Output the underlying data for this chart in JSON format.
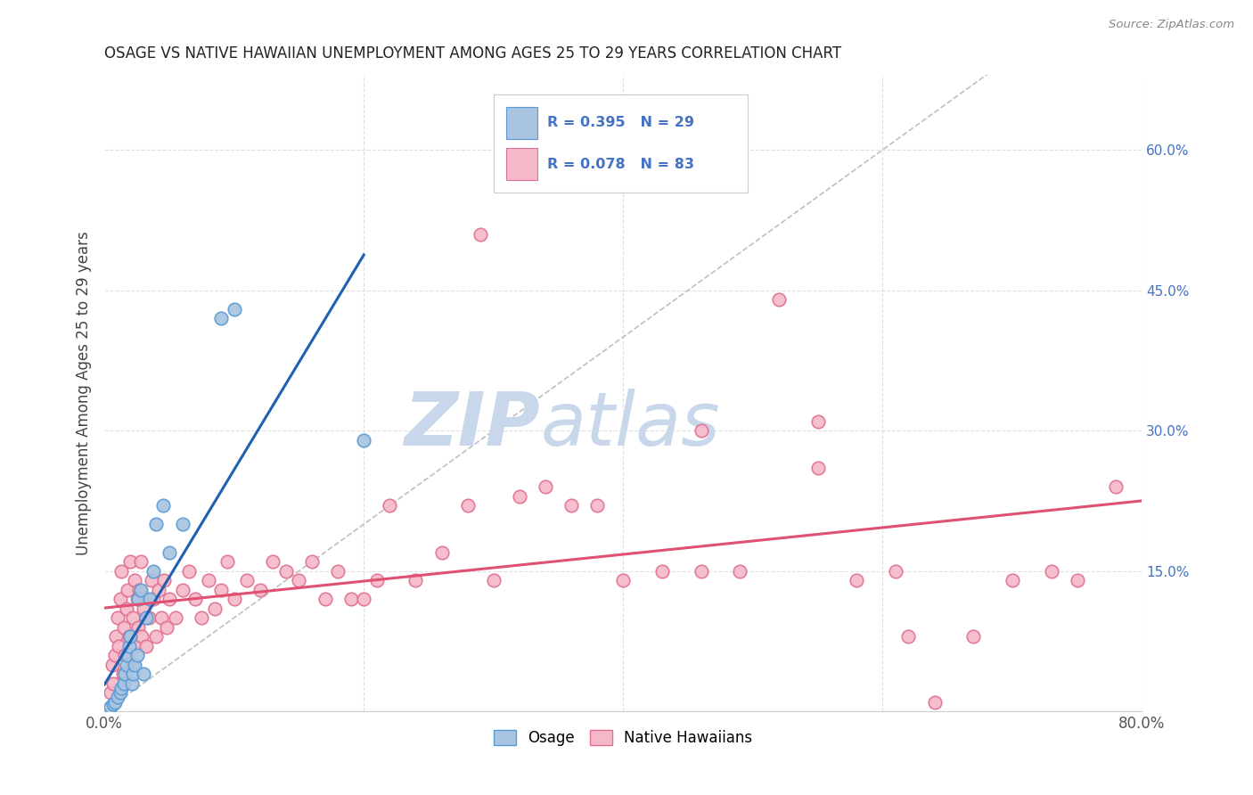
{
  "title": "OSAGE VS NATIVE HAWAIIAN UNEMPLOYMENT AMONG AGES 25 TO 29 YEARS CORRELATION CHART",
  "source": "Source: ZipAtlas.com",
  "ylabel": "Unemployment Among Ages 25 to 29 years",
  "xlim": [
    0.0,
    0.8
  ],
  "ylim": [
    0.0,
    0.68
  ],
  "yticks_right": [
    0.15,
    0.3,
    0.45,
    0.6
  ],
  "ytick_right_labels": [
    "15.0%",
    "30.0%",
    "45.0%",
    "60.0%"
  ],
  "osage_color": "#a8c4e0",
  "osage_edge_color": "#5b9bd5",
  "nh_color": "#f4b8c8",
  "nh_edge_color": "#e07090",
  "regression_osage_color": "#2060b0",
  "regression_nh_color": "#e05070",
  "diagonal_color": "#b8b8b8",
  "watermark_color": "#c8d8ea",
  "background_color": "#ffffff",
  "grid_color": "#e0e0e0",
  "legend_text_blue": "#4472c4",
  "legend_text_dark": "#333333",
  "osage_x": [
    0.005,
    0.007,
    0.008,
    0.01,
    0.012,
    0.013,
    0.015,
    0.016,
    0.017,
    0.018,
    0.019,
    0.02,
    0.021,
    0.022,
    0.023,
    0.025,
    0.026,
    0.028,
    0.03,
    0.032,
    0.035,
    0.038,
    0.04,
    0.045,
    0.05,
    0.06,
    0.09,
    0.1,
    0.2
  ],
  "osage_y": [
    0.005,
    0.008,
    0.01,
    0.015,
    0.02,
    0.025,
    0.03,
    0.04,
    0.05,
    0.06,
    0.07,
    0.08,
    0.03,
    0.04,
    0.05,
    0.06,
    0.12,
    0.13,
    0.04,
    0.1,
    0.12,
    0.15,
    0.2,
    0.22,
    0.17,
    0.2,
    0.42,
    0.43,
    0.29
  ],
  "nh_x": [
    0.005,
    0.006,
    0.007,
    0.008,
    0.009,
    0.01,
    0.011,
    0.012,
    0.013,
    0.014,
    0.015,
    0.016,
    0.017,
    0.018,
    0.019,
    0.02,
    0.021,
    0.022,
    0.023,
    0.024,
    0.025,
    0.026,
    0.027,
    0.028,
    0.029,
    0.03,
    0.032,
    0.034,
    0.036,
    0.038,
    0.04,
    0.042,
    0.044,
    0.046,
    0.048,
    0.05,
    0.055,
    0.06,
    0.065,
    0.07,
    0.075,
    0.08,
    0.085,
    0.09,
    0.095,
    0.1,
    0.11,
    0.12,
    0.13,
    0.14,
    0.15,
    0.16,
    0.17,
    0.18,
    0.19,
    0.2,
    0.21,
    0.22,
    0.24,
    0.26,
    0.28,
    0.3,
    0.32,
    0.34,
    0.36,
    0.38,
    0.4,
    0.43,
    0.46,
    0.49,
    0.52,
    0.55,
    0.58,
    0.61,
    0.64,
    0.67,
    0.7,
    0.73,
    0.75,
    0.78,
    0.29,
    0.46,
    0.55,
    0.62
  ],
  "nh_y": [
    0.02,
    0.05,
    0.03,
    0.06,
    0.08,
    0.1,
    0.07,
    0.12,
    0.15,
    0.04,
    0.09,
    0.06,
    0.11,
    0.13,
    0.08,
    0.16,
    0.05,
    0.1,
    0.14,
    0.07,
    0.12,
    0.09,
    0.13,
    0.16,
    0.08,
    0.11,
    0.07,
    0.1,
    0.14,
    0.12,
    0.08,
    0.13,
    0.1,
    0.14,
    0.09,
    0.12,
    0.1,
    0.13,
    0.15,
    0.12,
    0.1,
    0.14,
    0.11,
    0.13,
    0.16,
    0.12,
    0.14,
    0.13,
    0.16,
    0.15,
    0.14,
    0.16,
    0.12,
    0.15,
    0.12,
    0.12,
    0.14,
    0.22,
    0.14,
    0.17,
    0.22,
    0.14,
    0.23,
    0.24,
    0.22,
    0.22,
    0.14,
    0.15,
    0.15,
    0.15,
    0.44,
    0.26,
    0.14,
    0.15,
    0.01,
    0.08,
    0.14,
    0.15,
    0.14,
    0.24,
    0.51,
    0.3,
    0.31,
    0.08
  ]
}
